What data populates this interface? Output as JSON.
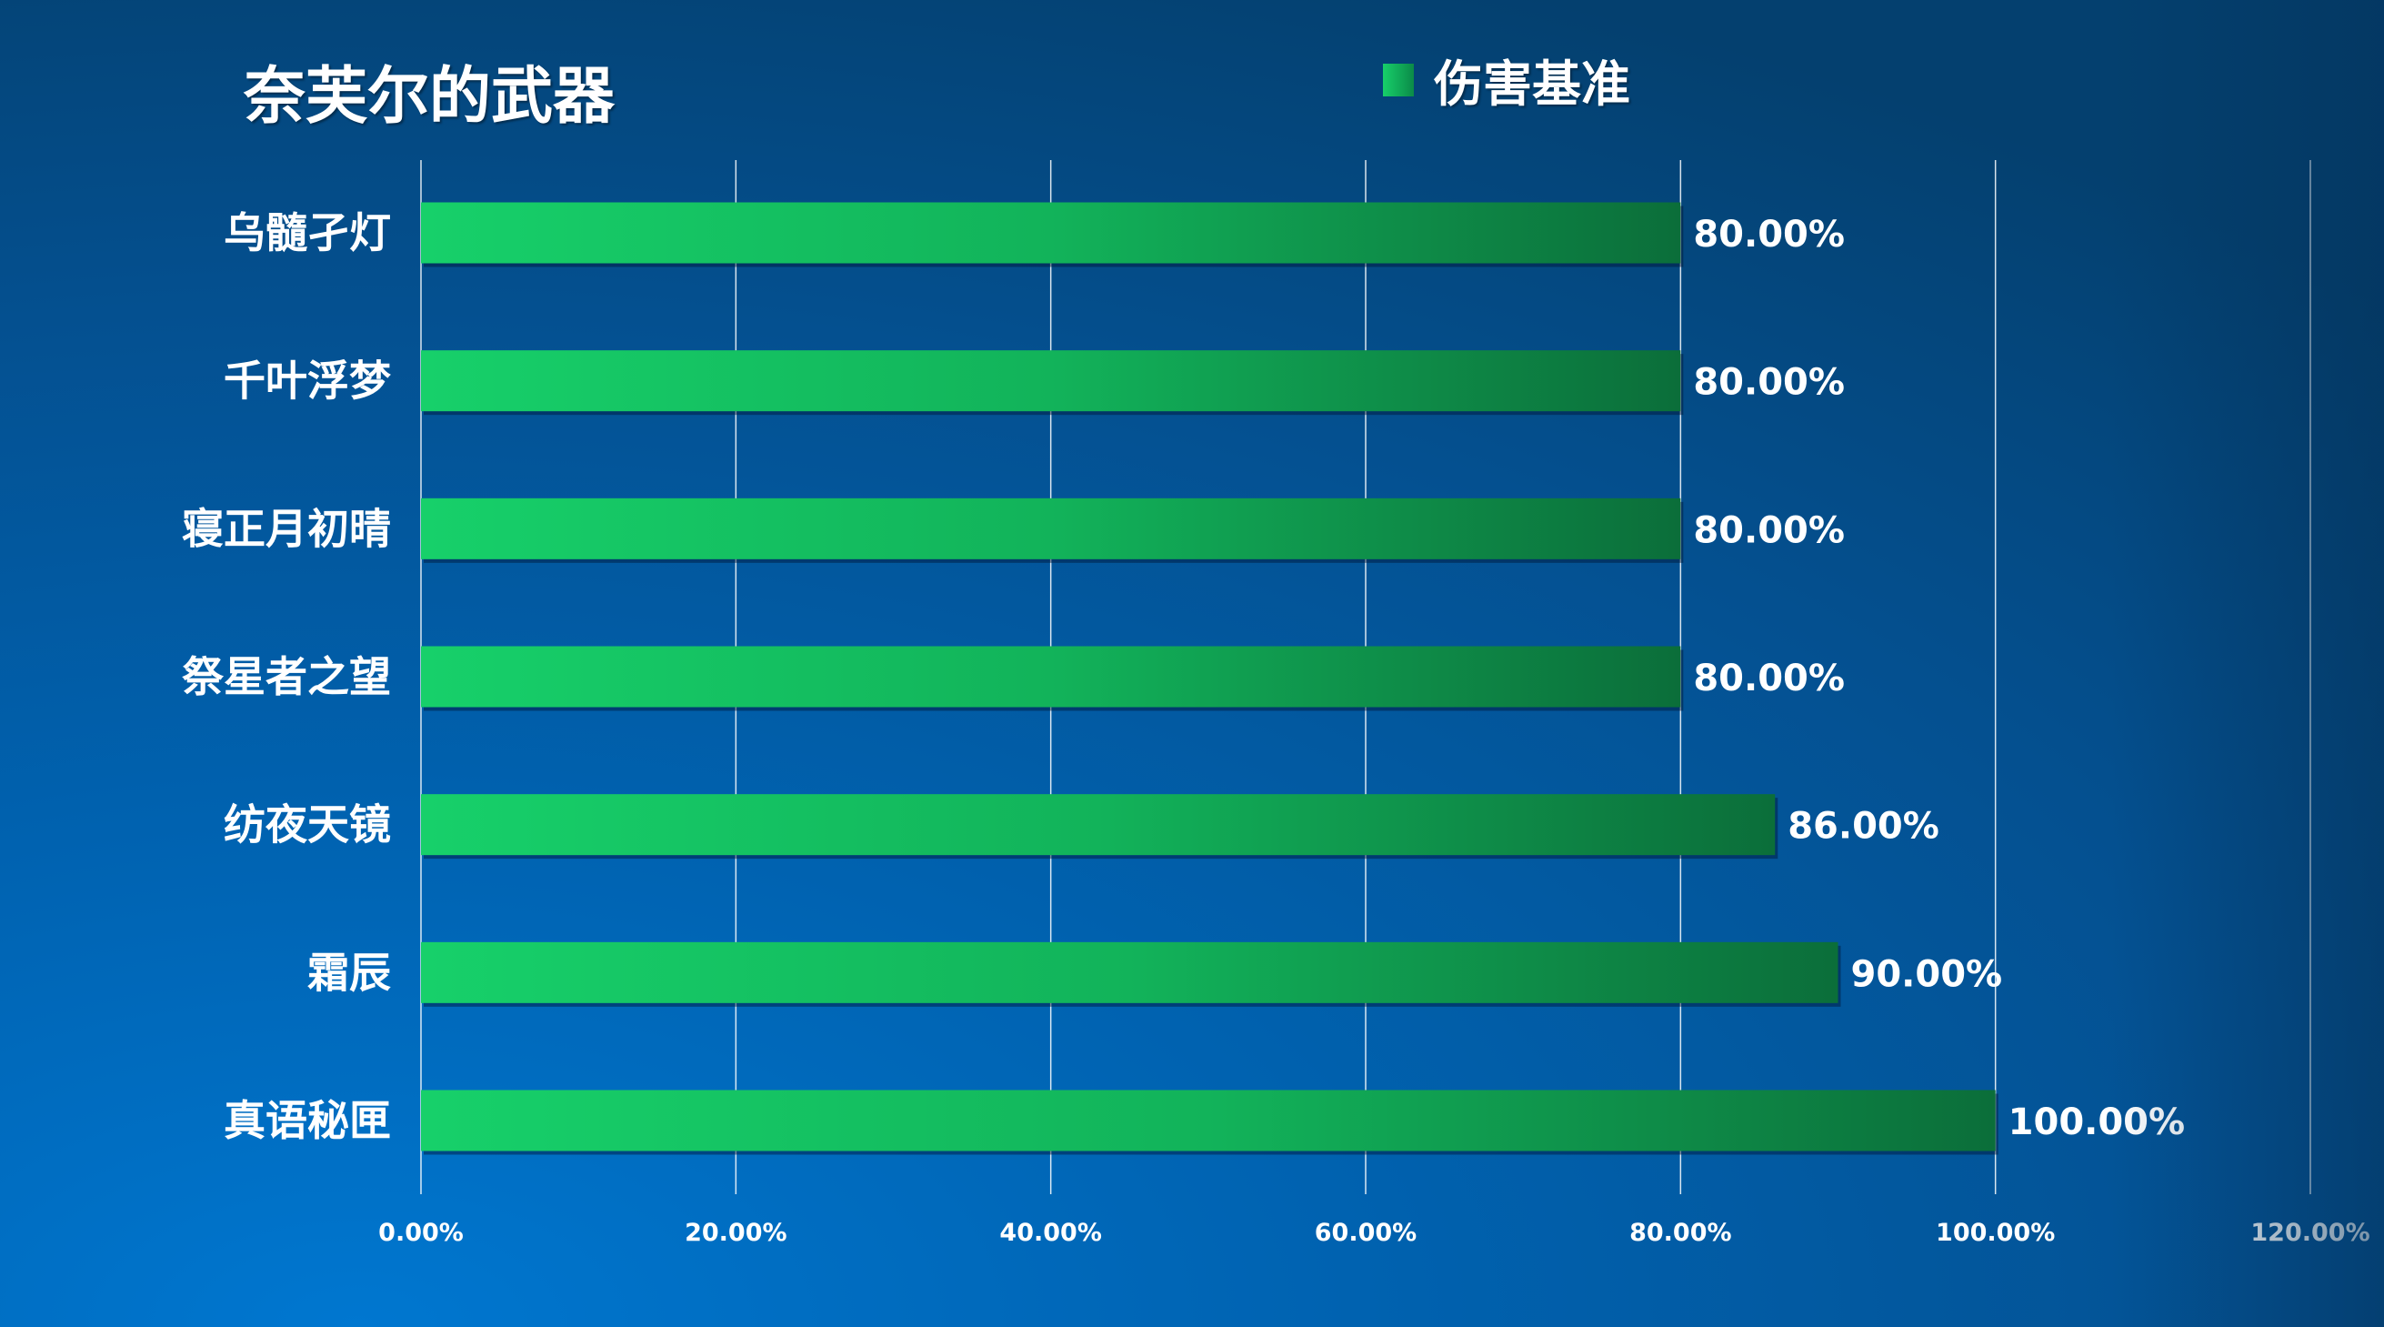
{
  "chart_data": {
    "type": "bar",
    "orientation": "horizontal",
    "title": "奈芙尔的武器",
    "legend": {
      "entries": [
        "伤害基准"
      ],
      "position": "top"
    },
    "categories": [
      "乌髓孑灯",
      "千叶浮梦",
      "寝正月初晴",
      "祭星者之望",
      "纺夜天镜",
      "霜辰",
      "真语秘匣"
    ],
    "series": [
      {
        "name": "伤害基准",
        "values": [
          80,
          80,
          80,
          80,
          86,
          90,
          100
        ]
      }
    ],
    "data_labels": [
      "80.00%",
      "80.00%",
      "80.00%",
      "80.00%",
      "86.00%",
      "90.00%",
      "100.00%"
    ],
    "xlim": [
      0,
      120
    ],
    "xticks": [
      "0.00%",
      "20.00%",
      "40.00%",
      "60.00%",
      "80.00%",
      "100.00%",
      "120.00%"
    ],
    "grid": true,
    "colors": {
      "bar_start": "#17d06a",
      "bar_end": "#0b6e3a",
      "background": "#0062b0"
    }
  }
}
